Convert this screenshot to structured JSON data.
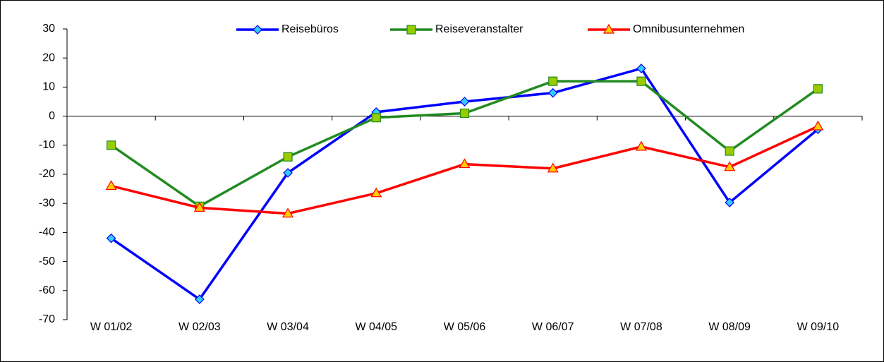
{
  "chart_data": {
    "type": "line",
    "categories": [
      "W 01/02",
      "W 02/03",
      "W 03/04",
      "W 04/05",
      "W 05/06",
      "W 06/07",
      "W 07/08",
      "W 08/09",
      "W 09/10"
    ],
    "series": [
      {
        "name": "Reisebüros",
        "color": "#0000ff",
        "marker": "diamond",
        "marker_fill": "#33ccff",
        "values": [
          -42,
          -63,
          -19.5,
          1.4,
          5,
          8,
          16.4,
          -29.7,
          -4.5
        ]
      },
      {
        "name": "Reiseveranstalter",
        "color": "#228b22",
        "marker": "square",
        "marker_fill": "#99cc00",
        "values": [
          -10,
          -31,
          -14,
          -0.5,
          1,
          12,
          12,
          -12,
          9.4
        ]
      },
      {
        "name": "Omnibusunternehmen",
        "color": "#ff0000",
        "marker": "triangle",
        "marker_fill": "#ffcc00",
        "values": [
          -24,
          -31.5,
          -33.5,
          -26.5,
          -16.5,
          -18,
          -10.5,
          -17.5,
          -3.5
        ]
      }
    ],
    "ylim": [
      -70,
      30
    ],
    "yticks": [
      -70,
      -60,
      -50,
      -40,
      -30,
      -20,
      -10,
      0,
      10,
      20,
      30
    ],
    "grid": false,
    "legend": "top"
  }
}
